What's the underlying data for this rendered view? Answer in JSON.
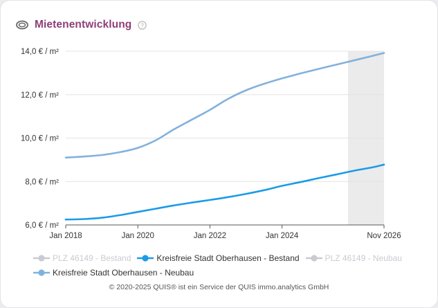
{
  "header": {
    "title": "Mietenentwicklung",
    "title_icon": "coins-icon",
    "help_icon": "help-circle-icon"
  },
  "chart_data": {
    "type": "line",
    "title": "Mietenentwicklung",
    "xlabel": "",
    "ylabel": "",
    "x_ticks": [
      {
        "value": 2018.0,
        "label": "Jan 2018"
      },
      {
        "value": 2020.0,
        "label": "Jan 2020"
      },
      {
        "value": 2022.0,
        "label": "Jan 2022"
      },
      {
        "value": 2024.0,
        "label": "Jan 2024"
      },
      {
        "value": 2026.83,
        "label": "Nov 2026"
      }
    ],
    "y_ticks": [
      {
        "value": 6,
        "label": "6,0 € / m²"
      },
      {
        "value": 8,
        "label": "8,0 € / m²"
      },
      {
        "value": 10,
        "label": "10,0 € / m²"
      },
      {
        "value": 12,
        "label": "12,0 € / m²"
      },
      {
        "value": 14,
        "label": "14,0 € / m²"
      }
    ],
    "xlim": [
      2018.0,
      2026.83
    ],
    "ylim": [
      6,
      14
    ],
    "forecast_band": {
      "from": 2025.83,
      "to": 2026.83,
      "color": "#ebebeb"
    },
    "grid": true,
    "legend_position": "bottom",
    "series": [
      {
        "name": "PLZ 46149 - Bestand",
        "visible": false,
        "color": "#c9cbd0",
        "points": []
      },
      {
        "name": "Kreisfreie Stadt Oberhausen - Bestand",
        "visible": true,
        "color": "#1a9be8",
        "points": [
          [
            2018.0,
            6.25
          ],
          [
            2018.5,
            6.27
          ],
          [
            2019.0,
            6.33
          ],
          [
            2019.5,
            6.45
          ],
          [
            2020.0,
            6.6
          ],
          [
            2020.5,
            6.75
          ],
          [
            2021.0,
            6.9
          ],
          [
            2021.5,
            7.03
          ],
          [
            2022.0,
            7.15
          ],
          [
            2022.5,
            7.28
          ],
          [
            2023.0,
            7.43
          ],
          [
            2023.5,
            7.6
          ],
          [
            2024.0,
            7.8
          ],
          [
            2024.5,
            7.97
          ],
          [
            2025.0,
            8.15
          ],
          [
            2025.5,
            8.32
          ],
          [
            2026.0,
            8.5
          ],
          [
            2026.5,
            8.65
          ],
          [
            2026.83,
            8.78
          ]
        ]
      },
      {
        "name": "PLZ 46149 - Neubau",
        "visible": false,
        "color": "#c9cbd0",
        "points": []
      },
      {
        "name": "Kreisfreie Stadt Oberhausen - Neubau",
        "visible": true,
        "color": "#82b1dd",
        "points": [
          [
            2018.0,
            9.1
          ],
          [
            2018.5,
            9.15
          ],
          [
            2019.0,
            9.22
          ],
          [
            2019.5,
            9.35
          ],
          [
            2020.0,
            9.55
          ],
          [
            2020.5,
            9.9
          ],
          [
            2021.0,
            10.4
          ],
          [
            2021.5,
            10.85
          ],
          [
            2022.0,
            11.3
          ],
          [
            2022.5,
            11.8
          ],
          [
            2023.0,
            12.2
          ],
          [
            2023.5,
            12.5
          ],
          [
            2024.0,
            12.75
          ],
          [
            2024.5,
            12.97
          ],
          [
            2025.0,
            13.18
          ],
          [
            2025.5,
            13.38
          ],
          [
            2026.0,
            13.58
          ],
          [
            2026.5,
            13.78
          ],
          [
            2026.83,
            13.92
          ]
        ]
      }
    ]
  },
  "footer": {
    "text": "© 2020-2025 QUIS® ist ein Service der QUIS immo.analytics GmbH"
  }
}
